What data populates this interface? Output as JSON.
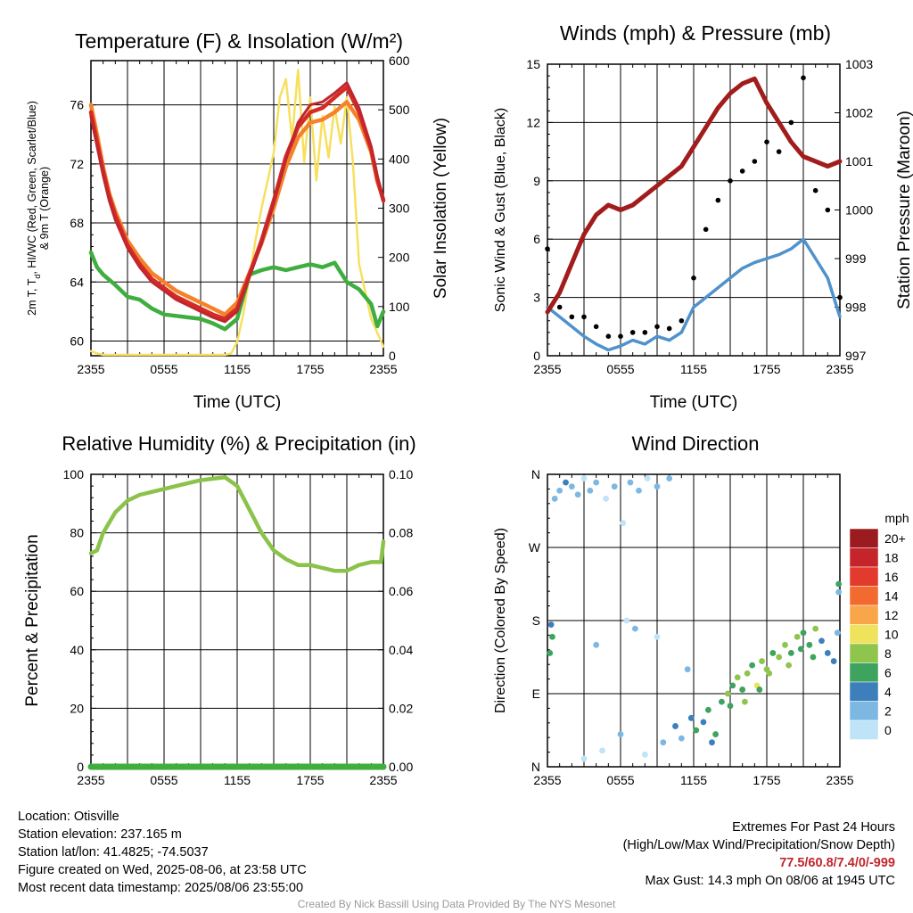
{
  "colors": {
    "temp": "#d42b25",
    "dew": "#3fae3f",
    "hi": "#c0262d",
    "t9m": "#f5822b",
    "solar": "#f7e05f",
    "wind": "#4f92cc",
    "gust": "#000000",
    "pressure": "#a21c1c",
    "rh": "#8bc34a",
    "precip": "#3fae3f"
  },
  "chart_data": [
    {
      "type": "line",
      "title": "Temperature (F) & Insolation (W/m²)",
      "xlabel": "Time (UTC)",
      "ylabel": "2m T, Td, HI/WC (Red, Green, Scarlet/Blue) & 9m T (Orange)",
      "ylabel_line1": "2m T, T",
      "ylabel_sub": "d",
      "ylabel_line1_rest": ", HI/WC (Red, Green, Scarlet/Blue)",
      "ylabel_line2": "& 9m T (Orange)",
      "y2label": "Solar Insolation (Yellow)",
      "xticks": [
        "2355",
        "0555",
        "1155",
        "1755",
        "2355"
      ],
      "ylim": [
        59,
        79
      ],
      "yticks": [
        "60",
        "64",
        "68",
        "72",
        "76"
      ],
      "y2lim": [
        0,
        640
      ],
      "y2ticks": [
        "0",
        "100",
        "200",
        "300",
        "400",
        "500",
        "600"
      ],
      "series": [
        {
          "key": "temp",
          "x": [
            0,
            0.5,
            1,
            1.5,
            2,
            3,
            4,
            5,
            6,
            7,
            8,
            9,
            10,
            11,
            12,
            13,
            14,
            15,
            16,
            17,
            18,
            19,
            20,
            21,
            22,
            23,
            23.5,
            24
          ],
          "y": [
            75.5,
            73.5,
            71.5,
            69.8,
            68.5,
            66.5,
            65.2,
            64.2,
            63.6,
            63.0,
            62.6,
            62.2,
            61.8,
            61.5,
            62.2,
            64.5,
            66.8,
            69.5,
            72.5,
            74.5,
            75.5,
            75.8,
            76.5,
            77.2,
            75.5,
            73.0,
            71.0,
            69.5
          ]
        },
        {
          "key": "hi",
          "x": [
            0,
            0.5,
            1,
            1.5,
            2,
            3,
            4,
            5,
            6,
            7,
            8,
            9,
            10,
            11,
            12,
            13,
            14,
            15,
            16,
            17,
            18,
            19,
            20,
            21,
            22,
            23,
            23.5,
            24
          ],
          "y": [
            75.2,
            73.2,
            71.2,
            69.5,
            68.2,
            66.3,
            65.0,
            64.0,
            63.4,
            62.8,
            62.4,
            62.0,
            61.6,
            61.3,
            62.0,
            64.3,
            66.6,
            69.3,
            72.3,
            74.8,
            76.0,
            76.2,
            76.8,
            77.5,
            75.8,
            73.2,
            71.2,
            69.6
          ]
        },
        {
          "key": "t9m",
          "x": [
            0,
            0.5,
            1,
            1.5,
            2,
            3,
            4,
            5,
            6,
            7,
            8,
            9,
            10,
            11,
            12,
            13,
            14,
            15,
            16,
            17,
            18,
            19,
            20,
            21,
            22,
            23,
            23.5,
            24
          ],
          "y": [
            76.0,
            74.0,
            71.8,
            70.0,
            68.8,
            66.8,
            65.6,
            64.6,
            64.0,
            63.4,
            63.0,
            62.6,
            62.2,
            61.8,
            62.6,
            64.6,
            66.6,
            69.0,
            71.8,
            73.8,
            74.8,
            75.0,
            75.5,
            76.2,
            75.0,
            72.8,
            70.8,
            69.6
          ]
        },
        {
          "key": "dew",
          "x": [
            0,
            0.5,
            1,
            2,
            3,
            4,
            5,
            6,
            7,
            8,
            9,
            10,
            11,
            12,
            13,
            14,
            15,
            16,
            17,
            18,
            19,
            20,
            21,
            22,
            23,
            23.5,
            24
          ],
          "y": [
            66.0,
            65.0,
            64.5,
            63.8,
            63.0,
            62.8,
            62.2,
            61.8,
            61.7,
            61.6,
            61.5,
            61.2,
            60.8,
            61.5,
            64.5,
            64.8,
            65.0,
            64.8,
            65.0,
            65.2,
            65.0,
            65.3,
            64.0,
            63.5,
            62.5,
            61.0,
            62.0
          ]
        },
        {
          "key": "solar",
          "x": [
            0,
            0.5,
            1,
            2,
            3,
            4,
            5,
            6,
            7,
            8,
            9,
            10,
            11,
            11.5,
            12,
            12.5,
            13,
            13.5,
            14,
            14.5,
            15,
            15.5,
            16,
            16.5,
            17,
            17.5,
            18,
            18.5,
            19,
            19.5,
            20,
            20.5,
            21,
            21.5,
            22,
            23,
            24
          ],
          "y": [
            10,
            5,
            2,
            2,
            2,
            2,
            2,
            2,
            2,
            2,
            2,
            2,
            2,
            5,
            30,
            90,
            170,
            250,
            320,
            380,
            440,
            560,
            600,
            470,
            620,
            420,
            560,
            380,
            520,
            430,
            540,
            460,
            560,
            420,
            200,
            80,
            20
          ]
        }
      ]
    },
    {
      "type": "line",
      "title": "Winds (mph) & Pressure (mb)",
      "xlabel": "Time (UTC)",
      "ylabel": "Sonic Wind & Gust (Blue, Black)",
      "y2label": "Station Pressure (Maroon)",
      "xticks": [
        "2355",
        "0555",
        "1155",
        "1755",
        "2355"
      ],
      "ylim": [
        0,
        15
      ],
      "yticks": [
        "0",
        "3",
        "6",
        "9",
        "12",
        "15"
      ],
      "y2lim": [
        997,
        1003
      ],
      "y2ticks": [
        "997",
        "998",
        "999",
        "1000",
        "1001",
        "1002",
        "1003"
      ],
      "series": [
        {
          "key": "wind",
          "x": [
            0,
            1,
            2,
            3,
            4,
            5,
            6,
            7,
            8,
            9,
            10,
            11,
            12,
            13,
            14,
            15,
            16,
            17,
            18,
            19,
            20,
            21,
            22,
            23,
            24
          ],
          "y": [
            2.5,
            2.0,
            1.5,
            1.0,
            0.6,
            0.3,
            0.5,
            0.8,
            0.6,
            1.0,
            0.8,
            1.2,
            2.5,
            3.0,
            3.5,
            4.0,
            4.5,
            4.8,
            5.0,
            5.2,
            5.5,
            6.0,
            5.0,
            4.0,
            2.0
          ]
        },
        {
          "key": "gust",
          "x": [
            0,
            1,
            2,
            3,
            4,
            5,
            6,
            7,
            8,
            9,
            10,
            11,
            12,
            13,
            14,
            15,
            16,
            17,
            18,
            19,
            20,
            21,
            22,
            23,
            24
          ],
          "y": [
            5.5,
            2.5,
            2.0,
            2.0,
            1.5,
            1.0,
            1.0,
            1.2,
            1.2,
            1.5,
            1.4,
            1.8,
            4.0,
            6.5,
            8.0,
            9.0,
            9.5,
            10.0,
            11.0,
            10.5,
            12.0,
            14.3,
            8.5,
            7.5,
            3.0
          ]
        },
        {
          "key": "pressure",
          "x": [
            0,
            1,
            2,
            3,
            4,
            5,
            6,
            7,
            8,
            9,
            10,
            11,
            12,
            13,
            14,
            15,
            16,
            17,
            18,
            19,
            20,
            21,
            22,
            23,
            24
          ],
          "y": [
            997.9,
            998.3,
            998.9,
            999.5,
            999.9,
            1000.1,
            1000.0,
            1000.1,
            1000.3,
            1000.5,
            1000.7,
            1000.9,
            1001.3,
            1001.7,
            1002.1,
            1002.4,
            1002.6,
            1002.7,
            1002.2,
            1001.8,
            1001.4,
            1001.1,
            1001.0,
            1000.9,
            1001.0
          ]
        }
      ]
    },
    {
      "type": "line",
      "title": "Relative Humidity (%) & Precipitation (in)",
      "ylabel": "Percent & Precipitation",
      "xticks": [
        "2355",
        "0555",
        "1155",
        "1755",
        "2355"
      ],
      "ylim": [
        0,
        100
      ],
      "yticks": [
        "0",
        "20",
        "40",
        "60",
        "80",
        "100"
      ],
      "y2lim": [
        0,
        0.1
      ],
      "y2ticks": [
        "0.00",
        "0.02",
        "0.04",
        "0.06",
        "0.08",
        "0.10"
      ],
      "series": [
        {
          "key": "rh",
          "x": [
            0,
            0.5,
            1,
            2,
            3,
            4,
            5,
            6,
            7,
            8,
            9,
            10,
            11,
            12,
            13,
            14,
            15,
            16,
            17,
            18,
            19,
            20,
            21,
            22,
            23,
            23.8,
            24
          ],
          "y": [
            73,
            74,
            80,
            87,
            91,
            93,
            94,
            95,
            96,
            97,
            98,
            98.5,
            99,
            96,
            88,
            80,
            74,
            71,
            69,
            69,
            68,
            67,
            67,
            69,
            70,
            70,
            77
          ]
        },
        {
          "key": "precip",
          "x": [
            0,
            24
          ],
          "y": [
            0,
            0
          ]
        }
      ]
    },
    {
      "type": "scatter",
      "title": "Wind Direction",
      "ylabel": "Direction (Colored By Speed)",
      "xticks": [
        "2355",
        "0555",
        "1155",
        "1755",
        "2355"
      ],
      "ylim": [
        0,
        360
      ],
      "yticks": [
        "N",
        "E",
        "S",
        "W",
        "N"
      ],
      "legend_title": "mph",
      "legend": [
        {
          "label": "20+",
          "color": "#9b1b1f"
        },
        {
          "label": "18",
          "color": "#c4242a"
        },
        {
          "label": "16",
          "color": "#e23b2e"
        },
        {
          "label": "14",
          "color": "#f26a2f"
        },
        {
          "label": "12",
          "color": "#f9a64b"
        },
        {
          "label": "10",
          "color": "#eee35b"
        },
        {
          "label": "8",
          "color": "#8fc44d"
        },
        {
          "label": "6",
          "color": "#3ea35e"
        },
        {
          "label": "4",
          "color": "#3c7fba"
        },
        {
          "label": "2",
          "color": "#7db8e3"
        },
        {
          "label": "0",
          "color": "#bfe3f7"
        }
      ],
      "points": [
        {
          "x": 0.6,
          "y": 330,
          "s": 1
        },
        {
          "x": 1.0,
          "y": 340,
          "s": 1
        },
        {
          "x": 1.5,
          "y": 350,
          "s": 2
        },
        {
          "x": 2.0,
          "y": 345,
          "s": 1
        },
        {
          "x": 2.5,
          "y": 335,
          "s": 1
        },
        {
          "x": 3.0,
          "y": 355,
          "s": 0
        },
        {
          "x": 3.5,
          "y": 340,
          "s": 1
        },
        {
          "x": 4.0,
          "y": 350,
          "s": 1
        },
        {
          "x": 4.8,
          "y": 330,
          "s": 0
        },
        {
          "x": 5.5,
          "y": 345,
          "s": 1
        },
        {
          "x": 6.2,
          "y": 300,
          "s": 0
        },
        {
          "x": 6.8,
          "y": 350,
          "s": 1
        },
        {
          "x": 7.5,
          "y": 340,
          "s": 1
        },
        {
          "x": 8.2,
          "y": 355,
          "s": 0
        },
        {
          "x": 9.0,
          "y": 345,
          "s": 1
        },
        {
          "x": 10.0,
          "y": 355,
          "s": 1
        },
        {
          "x": 0.3,
          "y": 175,
          "s": 2
        },
        {
          "x": 0.4,
          "y": 160,
          "s": 3
        },
        {
          "x": 0.2,
          "y": 140,
          "s": 3
        },
        {
          "x": 4.0,
          "y": 150,
          "s": 1
        },
        {
          "x": 6.5,
          "y": 180,
          "s": 0
        },
        {
          "x": 7.2,
          "y": 170,
          "s": 1
        },
        {
          "x": 9.0,
          "y": 160,
          "s": 0
        },
        {
          "x": 11.5,
          "y": 120,
          "s": 1
        },
        {
          "x": 3.0,
          "y": 10,
          "s": 0
        },
        {
          "x": 4.5,
          "y": 20,
          "s": 0
        },
        {
          "x": 6.0,
          "y": 40,
          "s": 1
        },
        {
          "x": 8.0,
          "y": 15,
          "s": 0
        },
        {
          "x": 9.5,
          "y": 30,
          "s": 1
        },
        {
          "x": 10.5,
          "y": 50,
          "s": 2
        },
        {
          "x": 11.0,
          "y": 35,
          "s": 1
        },
        {
          "x": 11.8,
          "y": 60,
          "s": 2
        },
        {
          "x": 12.2,
          "y": 45,
          "s": 3
        },
        {
          "x": 12.8,
          "y": 55,
          "s": 2
        },
        {
          "x": 13.2,
          "y": 70,
          "s": 3
        },
        {
          "x": 13.8,
          "y": 40,
          "s": 3
        },
        {
          "x": 14.3,
          "y": 80,
          "s": 3
        },
        {
          "x": 14.8,
          "y": 90,
          "s": 4
        },
        {
          "x": 15.2,
          "y": 100,
          "s": 3
        },
        {
          "x": 15.6,
          "y": 110,
          "s": 4
        },
        {
          "x": 16.0,
          "y": 95,
          "s": 3
        },
        {
          "x": 16.4,
          "y": 115,
          "s": 4
        },
        {
          "x": 16.8,
          "y": 125,
          "s": 3
        },
        {
          "x": 17.2,
          "y": 100,
          "s": 5
        },
        {
          "x": 17.6,
          "y": 130,
          "s": 4
        },
        {
          "x": 18.0,
          "y": 120,
          "s": 4
        },
        {
          "x": 18.5,
          "y": 140,
          "s": 3
        },
        {
          "x": 19.0,
          "y": 135,
          "s": 4
        },
        {
          "x": 19.5,
          "y": 150,
          "s": 4
        },
        {
          "x": 20.0,
          "y": 140,
          "s": 3
        },
        {
          "x": 20.5,
          "y": 160,
          "s": 4
        },
        {
          "x": 21.0,
          "y": 165,
          "s": 3
        },
        {
          "x": 21.5,
          "y": 150,
          "s": 3
        },
        {
          "x": 22.0,
          "y": 170,
          "s": 4
        },
        {
          "x": 22.5,
          "y": 155,
          "s": 2
        },
        {
          "x": 23.0,
          "y": 140,
          "s": 2
        },
        {
          "x": 23.5,
          "y": 130,
          "s": 2
        },
        {
          "x": 23.8,
          "y": 165,
          "s": 1
        },
        {
          "x": 23.9,
          "y": 215,
          "s": 1
        },
        {
          "x": 23.9,
          "y": 225,
          "s": 3
        },
        {
          "x": 18.2,
          "y": 115,
          "s": 4
        },
        {
          "x": 17.4,
          "y": 95,
          "s": 3
        },
        {
          "x": 16.2,
          "y": 80,
          "s": 4
        },
        {
          "x": 15.0,
          "y": 75,
          "s": 3
        },
        {
          "x": 19.8,
          "y": 125,
          "s": 4
        },
        {
          "x": 20.8,
          "y": 145,
          "s": 3
        },
        {
          "x": 21.8,
          "y": 135,
          "s": 3
        },
        {
          "x": 13.5,
          "y": 30,
          "s": 2
        }
      ]
    }
  ],
  "footer": {
    "location": "Location: Otisville",
    "elevation": "Station elevation: 237.165 m",
    "latlon": "Station lat/lon: 41.4825; -74.5037",
    "created": "Figure created on Wed, 2025-08-06, at 23:58 UTC",
    "recent": "Most recent data timestamp: 2025/08/06 23:55:00",
    "extremes_title": "Extremes For Past 24 Hours",
    "extremes_sub": "(High/Low/Max Wind/Precipitation/Snow Depth)",
    "extremes_values": "77.5/60.8/7.4/0/-999",
    "max_gust": "Max Gust: 14.3 mph On 08/06 at 1945 UTC",
    "credit": "Created By Nick Bassill Using Data Provided By The NYS Mesonet"
  }
}
